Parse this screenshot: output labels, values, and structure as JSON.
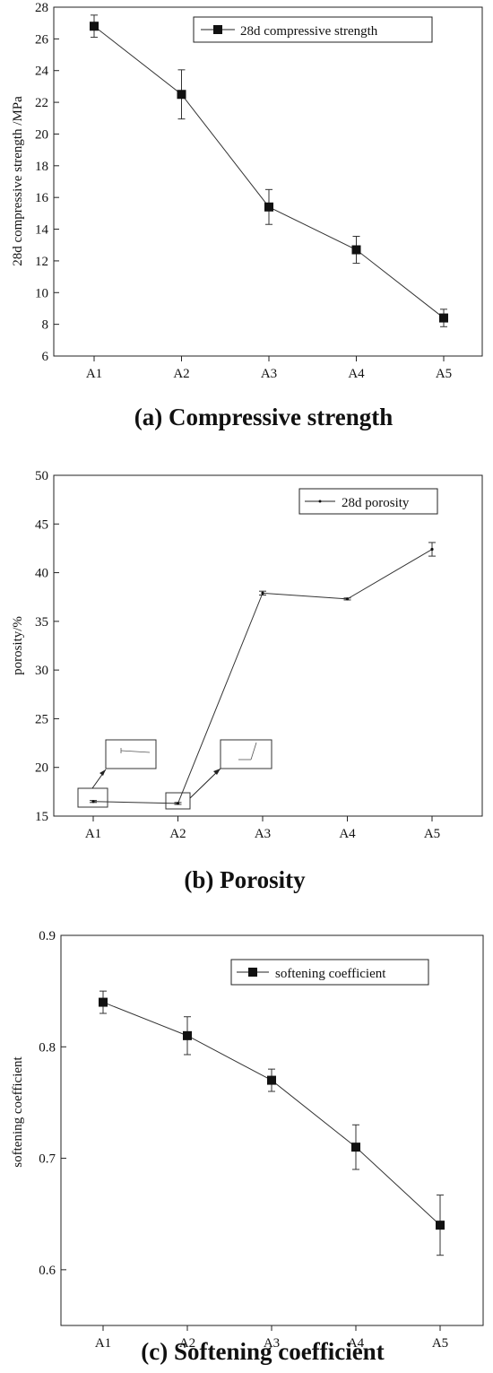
{
  "chart_data": [
    {
      "type": "line",
      "caption": "(a) Compressive strength",
      "categories": [
        "A1",
        "A2",
        "A3",
        "A4",
        "A5"
      ],
      "series": [
        {
          "name": "28d compressive strength",
          "values": [
            26.8,
            22.5,
            15.4,
            12.7,
            8.4
          ],
          "error": [
            0.7,
            1.55,
            1.1,
            0.85,
            0.55
          ],
          "marker": "square"
        }
      ],
      "xlabel": "",
      "ylabel": "28d compressive strength /MPa",
      "ylim": [
        6,
        28
      ],
      "yticks": [
        6,
        8,
        10,
        12,
        14,
        16,
        18,
        20,
        22,
        24,
        26,
        28
      ],
      "legend_position": "top-right",
      "grid": false
    },
    {
      "type": "line",
      "caption": "(b) Porosity",
      "categories": [
        "A1",
        "A2",
        "A3",
        "A4",
        "A5"
      ],
      "series": [
        {
          "name": "28d porosity",
          "values": [
            16.5,
            16.3,
            37.9,
            37.3,
            42.4
          ],
          "error": [
            0.1,
            0.1,
            0.2,
            0.1,
            0.7
          ],
          "marker": "dot"
        }
      ],
      "xlabel": "",
      "ylabel": "porosity/%",
      "ylim": [
        15,
        50
      ],
      "yticks": [
        15,
        20,
        25,
        30,
        35,
        40,
        45,
        50
      ],
      "legend_position": "top-right",
      "grid": false,
      "zoom_insets": [
        "A1",
        "A2"
      ]
    },
    {
      "type": "line",
      "caption": "(c) Softening coefficient",
      "categories": [
        "A1",
        "A2",
        "A3",
        "A4",
        "A5"
      ],
      "series": [
        {
          "name": "softening coefficient",
          "values": [
            0.84,
            0.81,
            0.77,
            0.71,
            0.64
          ],
          "error": [
            0.01,
            0.017,
            0.01,
            0.02,
            0.027
          ],
          "marker": "square"
        }
      ],
      "xlabel": "",
      "ylabel": "softening coefficient",
      "ylim": [
        0.55,
        0.9
      ],
      "yticks": [
        0.6,
        0.7,
        0.8,
        0.9
      ],
      "ytick_labels": [
        "0.6",
        "0.7",
        "0.8",
        "0.9"
      ],
      "legend_position": "top-right",
      "grid": false
    }
  ]
}
